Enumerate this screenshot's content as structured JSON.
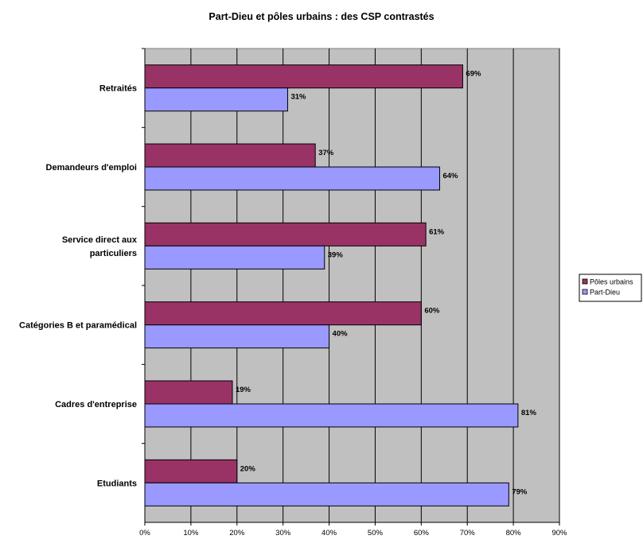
{
  "chart_data": {
    "type": "bar",
    "orientation": "horizontal",
    "title": "Part-Dieu et pôles urbains : des CSP contrastés",
    "categories": [
      "Retraités",
      "Demandeurs d'emploi",
      "Service direct aux particuliers",
      "Catégories B et paramédical",
      "Cadres d'entreprise",
      "Etudiants"
    ],
    "category_label_lines": [
      [
        "Retraités"
      ],
      [
        "Demandeurs d'emploi"
      ],
      [
        "Service direct aux",
        "particuliers"
      ],
      [
        "Catégories B et paramédical"
      ],
      [
        "Cadres d'entreprise"
      ],
      [
        "Etudiants"
      ]
    ],
    "series": [
      {
        "name": "Pôles urbains",
        "values": [
          69,
          37,
          61,
          60,
          19,
          20
        ],
        "color": "#993366"
      },
      {
        "name": "Part-Dieu",
        "values": [
          31,
          64,
          39,
          40,
          81,
          79
        ],
        "color": "#9999FF"
      }
    ],
    "value_labels": {
      "Pôles urbains": [
        "69%",
        "37%",
        "61%",
        "60%",
        "19%",
        "20%"
      ],
      "Part-Dieu": [
        "31%",
        "64%",
        "39%",
        "40%",
        "81%",
        "79%"
      ]
    },
    "xlim": [
      0,
      90
    ],
    "x_ticks": [
      "0%",
      "10%",
      "20%",
      "30%",
      "40%",
      "50%",
      "60%",
      "70%",
      "80%",
      "90%"
    ],
    "xlabel": "",
    "ylabel": "",
    "grid": true,
    "plot_background": "#C0C0C0",
    "legend_position": "right"
  }
}
